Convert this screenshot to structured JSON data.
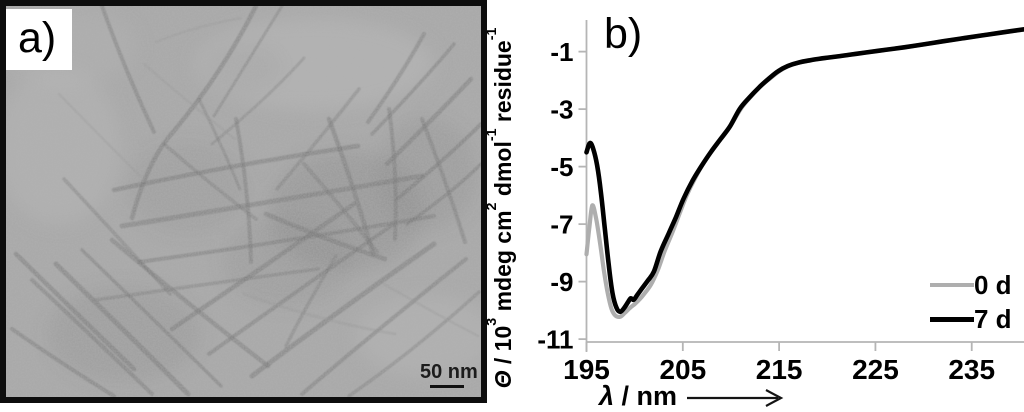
{
  "figure": {
    "panel_a": {
      "label": "a)",
      "scale_bar_label": "50 nm"
    },
    "panel_b": {
      "label": "b)"
    }
  },
  "chart_data": {
    "type": "line",
    "title": "",
    "xlabel_text": "λ / nm",
    "ylabel_text": "Θ / 10³ mdeg cm² dmol⁻¹ residue⁻¹",
    "xlabel_parts": [
      {
        "t": "λ",
        "italic": true
      },
      {
        "t": " / nm"
      }
    ],
    "ylabel_parts": [
      {
        "t": "Θ",
        "italic": true
      },
      {
        "t": " / 10"
      },
      {
        "sup": "3"
      },
      {
        "t": " mdeg cm"
      },
      {
        "sup": "2"
      },
      {
        "t": " dmol"
      },
      {
        "sup": "-1"
      },
      {
        "t": " residue"
      },
      {
        "sup": "-1"
      }
    ],
    "x_ticks": [
      195,
      205,
      215,
      225,
      235
    ],
    "y_ticks": [
      -1,
      -3,
      -5,
      -7,
      -9,
      -11
    ],
    "xlim": [
      195,
      240.5
    ],
    "ylim": [
      -11.1,
      0.1
    ],
    "grid": false,
    "axis_color": "#b5b5b5",
    "legend_position": "lower-right",
    "legend": {
      "entries": [
        {
          "label": "0 d",
          "color": "#aeaeae"
        },
        {
          "label": "7 d",
          "color": "#000000"
        }
      ]
    },
    "series": [
      {
        "name": "0 d",
        "color": "#aeaeae",
        "width": 4.2,
        "points": [
          [
            195.0,
            -8.05
          ],
          [
            195.3,
            -7.1
          ],
          [
            195.6,
            -6.35
          ],
          [
            196.0,
            -6.8
          ],
          [
            196.4,
            -7.65
          ],
          [
            196.8,
            -8.6
          ],
          [
            197.2,
            -9.4
          ],
          [
            197.6,
            -9.95
          ],
          [
            198.0,
            -10.18
          ],
          [
            198.5,
            -10.22
          ],
          [
            199.0,
            -10.08
          ],
          [
            199.5,
            -9.92
          ],
          [
            200.0,
            -9.78
          ],
          [
            200.5,
            -9.62
          ],
          [
            201.0,
            -9.42
          ],
          [
            201.7,
            -9.1
          ],
          [
            202.4,
            -8.6
          ],
          [
            203.1,
            -7.95
          ],
          [
            203.9,
            -7.3
          ],
          [
            204.7,
            -6.6
          ],
          [
            205.4,
            -6.0
          ],
          [
            206.2,
            -5.45
          ],
          [
            207.1,
            -4.9
          ],
          [
            208.1,
            -4.4
          ],
          [
            209.1,
            -3.95
          ],
          [
            210.1,
            -3.5
          ],
          [
            211.1,
            -2.95
          ],
          [
            212.1,
            -2.55
          ],
          [
            213.1,
            -2.2
          ],
          [
            214.1,
            -1.92
          ],
          [
            215.1,
            -1.66
          ],
          [
            216.1,
            -1.48
          ],
          [
            217.2,
            -1.37
          ],
          [
            218.4,
            -1.29
          ],
          [
            219.8,
            -1.22
          ],
          [
            221.2,
            -1.16
          ],
          [
            222.7,
            -1.09
          ],
          [
            224.2,
            -1.02
          ],
          [
            226.2,
            -0.93
          ],
          [
            228.2,
            -0.84
          ],
          [
            230.2,
            -0.74
          ],
          [
            232.2,
            -0.63
          ],
          [
            234.2,
            -0.53
          ],
          [
            236.2,
            -0.43
          ],
          [
            238.2,
            -0.33
          ],
          [
            240.5,
            -0.23
          ]
        ]
      },
      {
        "name": "7 d",
        "color": "#000000",
        "width": 4.6,
        "points": [
          [
            195.0,
            -4.5
          ],
          [
            195.35,
            -4.18
          ],
          [
            195.7,
            -4.38
          ],
          [
            196.1,
            -4.95
          ],
          [
            196.5,
            -5.9
          ],
          [
            196.9,
            -7.15
          ],
          [
            197.3,
            -8.4
          ],
          [
            197.7,
            -9.4
          ],
          [
            198.1,
            -9.9
          ],
          [
            198.5,
            -10.05
          ],
          [
            198.9,
            -9.92
          ],
          [
            199.3,
            -9.72
          ],
          [
            199.6,
            -9.58
          ],
          [
            199.9,
            -9.63
          ],
          [
            200.3,
            -9.45
          ],
          [
            200.8,
            -9.22
          ],
          [
            201.4,
            -8.95
          ],
          [
            202.0,
            -8.65
          ],
          [
            202.7,
            -7.95
          ],
          [
            203.5,
            -7.35
          ],
          [
            204.3,
            -6.75
          ],
          [
            205.1,
            -6.1
          ],
          [
            206.0,
            -5.5
          ],
          [
            206.9,
            -5.0
          ],
          [
            207.9,
            -4.5
          ],
          [
            208.9,
            -4.05
          ],
          [
            209.9,
            -3.6
          ],
          [
            210.9,
            -3.0
          ],
          [
            211.9,
            -2.6
          ],
          [
            212.9,
            -2.25
          ],
          [
            213.9,
            -1.95
          ],
          [
            214.9,
            -1.68
          ],
          [
            215.9,
            -1.5
          ],
          [
            217.0,
            -1.38
          ],
          [
            218.2,
            -1.3
          ],
          [
            219.6,
            -1.23
          ],
          [
            221.0,
            -1.17
          ],
          [
            222.5,
            -1.1
          ],
          [
            224.0,
            -1.03
          ],
          [
            226.0,
            -0.94
          ],
          [
            228.0,
            -0.85
          ],
          [
            230.0,
            -0.75
          ],
          [
            232.0,
            -0.64
          ],
          [
            234.0,
            -0.54
          ],
          [
            236.0,
            -0.44
          ],
          [
            238.0,
            -0.34
          ],
          [
            240.5,
            -0.22
          ]
        ]
      }
    ]
  }
}
